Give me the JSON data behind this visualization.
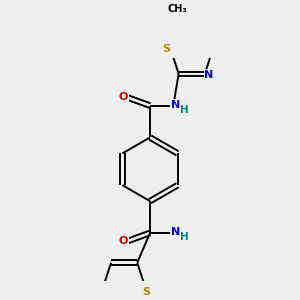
{
  "background_color": "#efefef",
  "bond_color": "#000000",
  "atom_colors": {
    "S": "#b8860b",
    "N": "#0000cc",
    "O": "#cc0000",
    "H": "#008888"
  },
  "figsize": [
    3.0,
    3.0
  ],
  "dpi": 100
}
